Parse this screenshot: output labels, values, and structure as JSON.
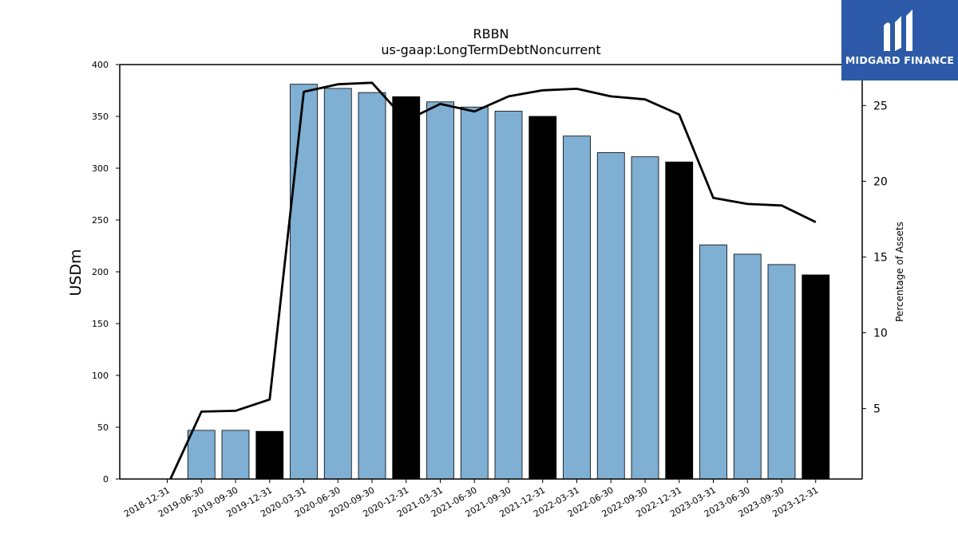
{
  "chart_data": {
    "type": "bar",
    "title": "RBBN",
    "subtitle": "us-gaap:LongTermDebtNoncurrent",
    "ylabel": "USDm",
    "y2label": "Percentage of Assets",
    "ylim": [
      0,
      400
    ],
    "y2lim": [
      0.35,
      27.7
    ],
    "yticks": [
      0,
      50,
      100,
      150,
      200,
      250,
      300,
      350,
      400
    ],
    "y2ticks": [
      5,
      10,
      15,
      20,
      25
    ],
    "categories": [
      "2018-12-31",
      "2019-06-30",
      "2019-09-30",
      "2019-12-31",
      "2020-03-31",
      "2020-06-30",
      "2020-09-30",
      "2020-12-31",
      "2021-03-31",
      "2021-06-30",
      "2021-09-30",
      "2021-12-31",
      "2022-03-31",
      "2022-06-30",
      "2022-09-30",
      "2022-12-31",
      "2023-03-31",
      "2023-06-30",
      "2023-09-30",
      "2023-12-31"
    ],
    "series": [
      {
        "kind": "bar",
        "axis": "left",
        "values": [
          0,
          47,
          47,
          46,
          381,
          377,
          373,
          369,
          364,
          359,
          355,
          350,
          331,
          315,
          311,
          306,
          226,
          217,
          207,
          197
        ],
        "colors": [
          "#7fafd3",
          "#7fafd3",
          "#7fafd3",
          "#000000",
          "#7fafd3",
          "#7fafd3",
          "#7fafd3",
          "#000000",
          "#7fafd3",
          "#7fafd3",
          "#7fafd3",
          "#000000",
          "#7fafd3",
          "#7fafd3",
          "#7fafd3",
          "#000000",
          "#7fafd3",
          "#7fafd3",
          "#7fafd3",
          "#000000"
        ]
      },
      {
        "kind": "line",
        "axis": "right",
        "color": "#000000",
        "values": [
          0.35,
          4.8,
          4.85,
          5.6,
          25.9,
          26.4,
          26.5,
          24.0,
          25.1,
          24.6,
          25.6,
          26.0,
          26.1,
          25.6,
          25.4,
          24.4,
          18.9,
          18.5,
          18.4,
          17.3
        ]
      }
    ],
    "grid": false
  },
  "logo": {
    "text": "MIDGARD FINANCE"
  }
}
